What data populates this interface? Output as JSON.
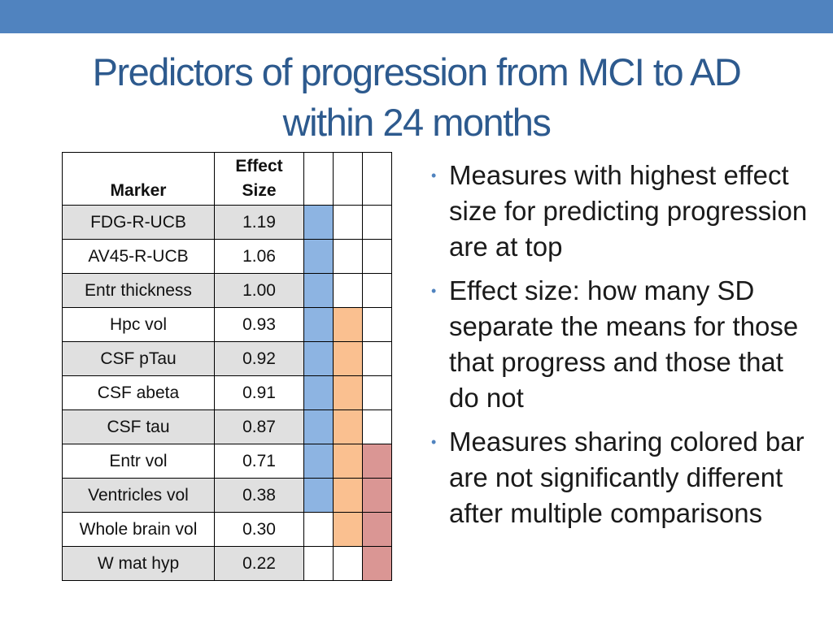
{
  "colors": {
    "top_bar": "#5083bf",
    "title": "#2d5a8e",
    "bar_blue": "#8db4e2",
    "bar_orange": "#fac090",
    "bar_red": "#da9694",
    "row_shade": "#e0e0e0"
  },
  "title": {
    "line1": "Predictors of progression from MCI to AD",
    "line2": "within 24 months"
  },
  "table": {
    "headers": {
      "marker": "Marker",
      "effect_line1": "Effect",
      "effect_line2": "Size"
    },
    "bar_colors": [
      "bar_blue",
      "bar_orange",
      "bar_red"
    ],
    "rows": [
      {
        "marker": "FDG-R-UCB",
        "effect": "1.19",
        "shaded": true,
        "bars": [
          true,
          false,
          false
        ]
      },
      {
        "marker": "AV45-R-UCB",
        "effect": "1.06",
        "shaded": false,
        "bars": [
          true,
          false,
          false
        ]
      },
      {
        "marker": "Entr thickness",
        "effect": "1.00",
        "shaded": true,
        "bars": [
          true,
          false,
          false
        ]
      },
      {
        "marker": "Hpc vol",
        "effect": "0.93",
        "shaded": false,
        "bars": [
          true,
          true,
          false
        ]
      },
      {
        "marker": "CSF pTau",
        "effect": "0.92",
        "shaded": true,
        "bars": [
          true,
          true,
          false
        ]
      },
      {
        "marker": "CSF abeta",
        "effect": "0.91",
        "shaded": false,
        "bars": [
          true,
          true,
          false
        ]
      },
      {
        "marker": "CSF tau",
        "effect": "0.87",
        "shaded": true,
        "bars": [
          true,
          true,
          false
        ]
      },
      {
        "marker": "Entr vol",
        "effect": "0.71",
        "shaded": false,
        "bars": [
          true,
          true,
          true
        ]
      },
      {
        "marker": "Ventricles vol",
        "effect": "0.38",
        "shaded": true,
        "bars": [
          true,
          true,
          true
        ]
      },
      {
        "marker": "Whole brain vol",
        "effect": "0.30",
        "shaded": false,
        "bars": [
          false,
          true,
          true
        ]
      },
      {
        "marker": "W mat hyp",
        "effect": "0.22",
        "shaded": true,
        "bars": [
          false,
          false,
          true
        ]
      }
    ]
  },
  "bullets": [
    "Measures with highest effect size for predicting progression are at top",
    "Effect size: how many SD separate the means for those that progress and those that do not",
    "Measures sharing colored bar are not significantly different after multiple comparisons"
  ]
}
